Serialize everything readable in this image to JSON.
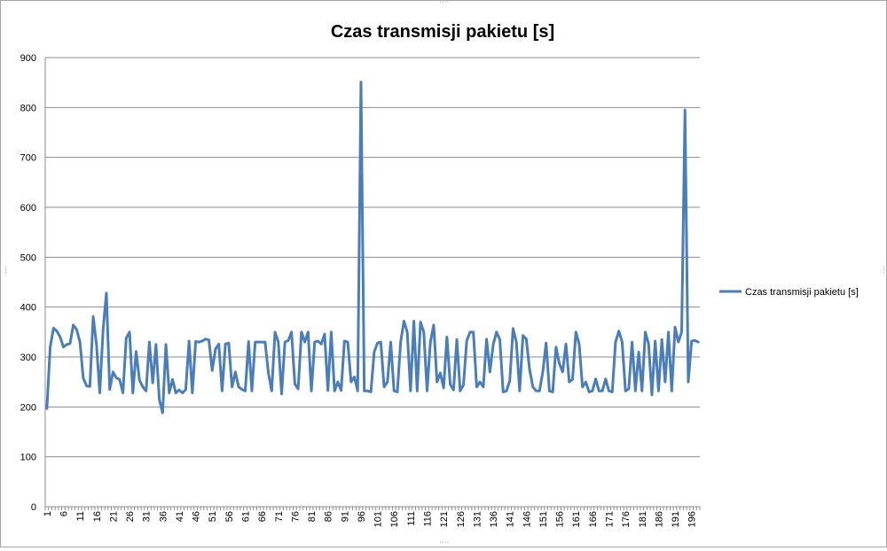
{
  "chart_data": {
    "type": "line",
    "title": "Czas transmisji pakietu [s]",
    "xlabel": "",
    "ylabel": "",
    "ylim": [
      0,
      900
    ],
    "yticks": [
      0,
      100,
      200,
      300,
      400,
      500,
      600,
      700,
      800,
      900
    ],
    "x_tick_labels": [
      "1",
      "6",
      "11",
      "16",
      "21",
      "26",
      "31",
      "36",
      "41",
      "46",
      "51",
      "56",
      "61",
      "66",
      "71",
      "76",
      "81",
      "86",
      "91",
      "96",
      "101",
      "106",
      "111",
      "116",
      "121",
      "126",
      "131",
      "136",
      "141",
      "146",
      "151",
      "156",
      "161",
      "166",
      "171",
      "176",
      "181",
      "186",
      "191",
      "196"
    ],
    "grid": "horizontal",
    "legend_position": "right",
    "series": [
      {
        "name": "Czas transmisji pakietu [s]",
        "color": "#4a7ebb",
        "values": [
          197,
          320,
          358,
          352,
          340,
          320,
          325,
          327,
          364,
          355,
          330,
          258,
          242,
          241,
          381,
          325,
          228,
          355,
          428,
          235,
          270,
          258,
          255,
          228,
          338,
          350,
          228,
          311,
          254,
          240,
          232,
          330,
          248,
          325,
          215,
          188,
          325,
          228,
          255,
          228,
          234,
          228,
          235,
          332,
          228,
          331,
          330,
          332,
          336,
          334,
          273,
          316,
          326,
          232,
          326,
          328,
          240,
          270,
          240,
          235,
          232,
          331,
          232,
          330,
          330,
          330,
          330,
          268,
          232,
          350,
          330,
          226,
          330,
          333,
          350,
          246,
          236,
          350,
          330,
          350,
          232,
          330,
          332,
          326,
          346,
          233,
          350,
          232,
          250,
          233,
          332,
          330,
          250,
          260,
          232,
          851,
          232,
          232,
          230,
          310,
          328,
          330,
          240,
          250,
          330,
          232,
          230,
          330,
          372,
          350,
          232,
          372,
          232,
          370,
          350,
          232,
          330,
          364,
          250,
          268,
          238,
          340,
          245,
          234,
          335,
          232,
          244,
          333,
          350,
          350,
          240,
          250,
          240,
          336,
          270,
          325,
          350,
          335,
          230,
          232,
          252,
          357,
          330,
          232,
          343,
          336,
          275,
          240,
          232,
          232,
          270,
          328,
          232,
          230,
          320,
          287,
          270,
          326,
          250,
          255,
          350,
          326,
          240,
          250,
          230,
          232,
          256,
          232,
          232,
          256,
          232,
          230,
          330,
          352,
          330,
          232,
          236,
          330,
          232,
          310,
          232,
          350,
          326,
          224,
          332,
          232,
          335,
          250,
          350,
          232,
          360,
          330,
          350,
          795,
          250,
          332,
          333,
          330
        ]
      }
    ]
  }
}
